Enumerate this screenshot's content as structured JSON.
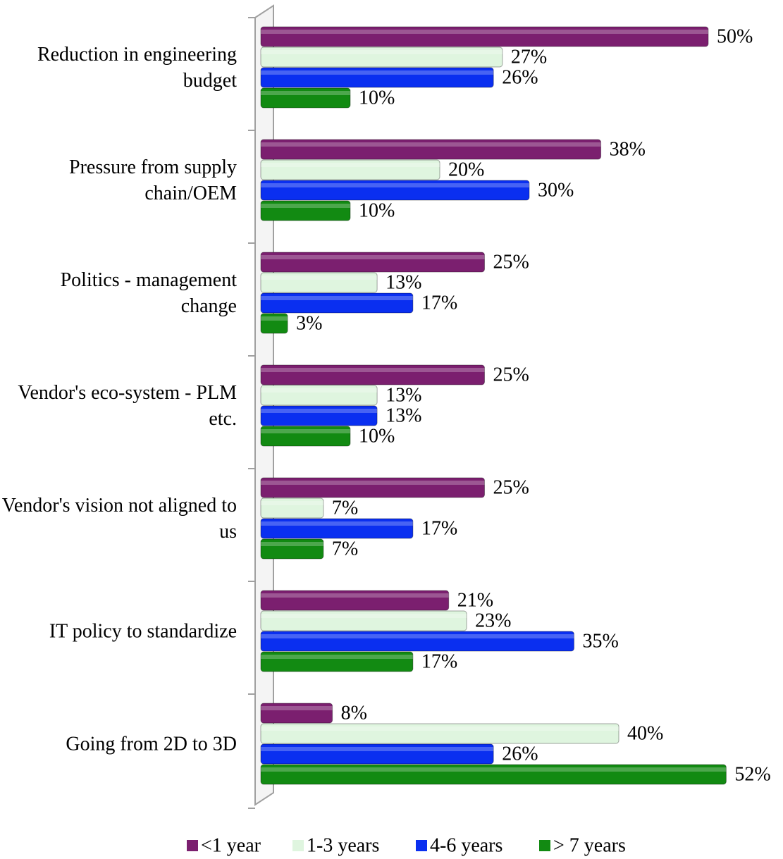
{
  "chart_data": {
    "type": "bar",
    "orientation": "horizontal",
    "categories": [
      "Reduction in engineering budget",
      "Pressure from supply chain/OEM",
      "Politics - management change",
      "Vendor's eco-system - PLM etc.",
      "Vendor's vision not aligned to us",
      "IT policy to standardize",
      "Going from 2D to 3D"
    ],
    "series": [
      {
        "name": "<1 year",
        "color": "#7b1f6f",
        "values": [
          50,
          38,
          25,
          25,
          25,
          21,
          8
        ],
        "value_labels": [
          "50%",
          "38%",
          "25%",
          "25%",
          "25%",
          "21%",
          "8%"
        ]
      },
      {
        "name": "1-3 years",
        "color": "#dff5df",
        "values": [
          27,
          20,
          13,
          13,
          7,
          23,
          40
        ],
        "value_labels": [
          "27%",
          "20%",
          "13%",
          "13%",
          "7%",
          "23%",
          "40%"
        ]
      },
      {
        "name": "4-6 years",
        "color": "#0a2ff0",
        "values": [
          26,
          30,
          17,
          13,
          17,
          35,
          26
        ],
        "value_labels": [
          "26%",
          "30%",
          "17%",
          "13%",
          "17%",
          "35%",
          "26%"
        ]
      },
      {
        "name": "> 7 years",
        "color": "#128a12",
        "values": [
          10,
          10,
          3,
          10,
          7,
          17,
          52
        ],
        "value_labels": [
          "10%",
          "10%",
          "3%",
          "10%",
          "7%",
          "17%",
          "52%"
        ]
      }
    ],
    "xlim": [
      0,
      55
    ],
    "legend": "bottom"
  }
}
